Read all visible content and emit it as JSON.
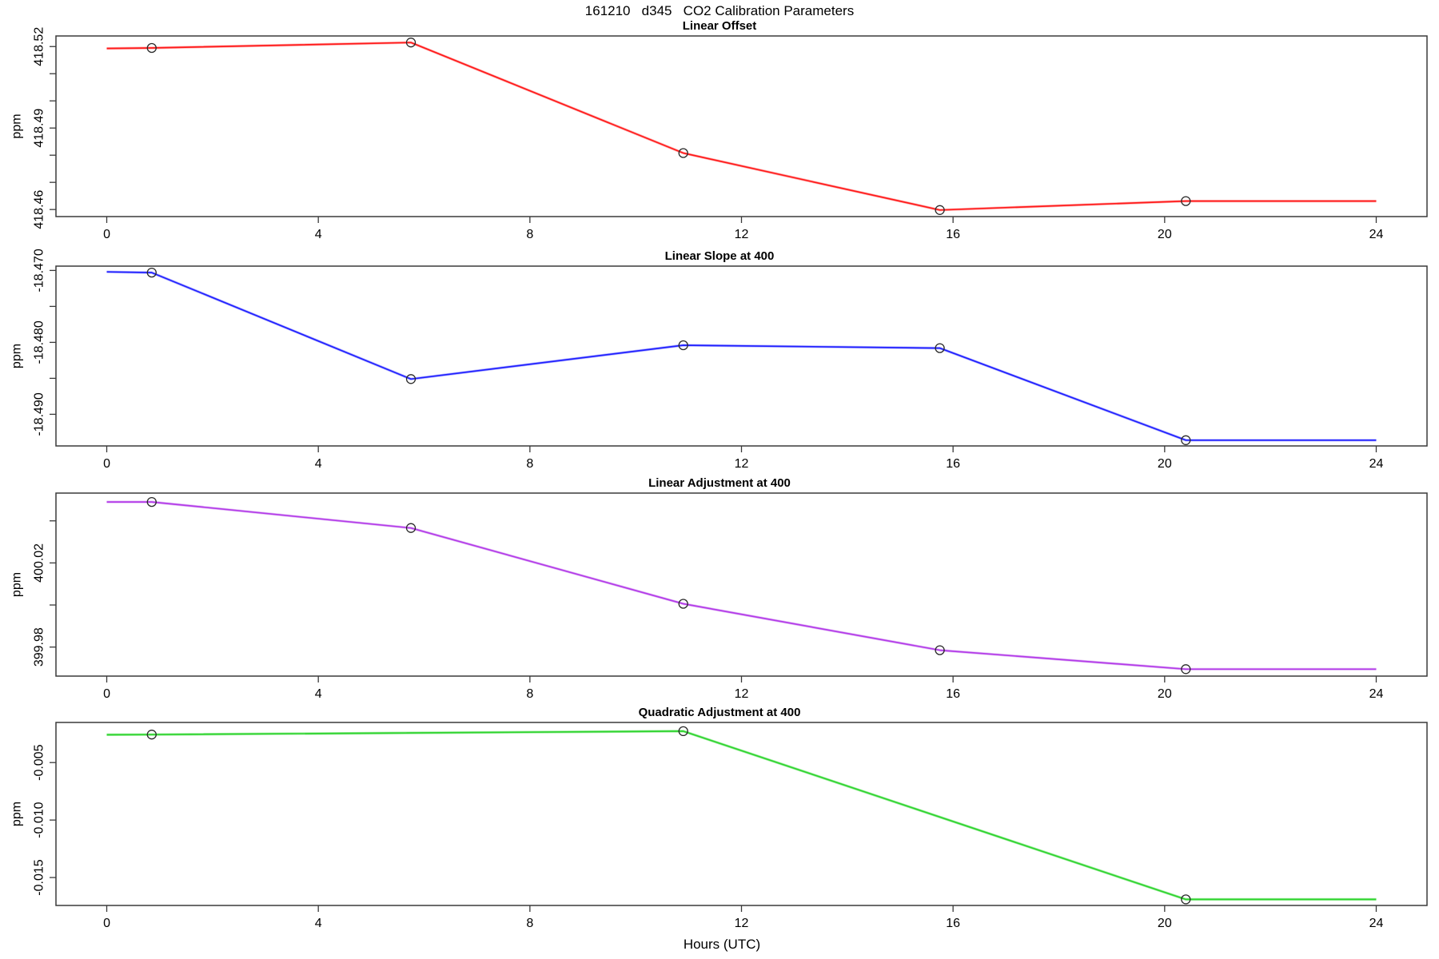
{
  "chart_data": {
    "type": "line",
    "title": "161210   d345   CO2 Calibration Parameters",
    "xlabel": "Hours (UTC)",
    "ylabel": "ppm",
    "x_ticks": [
      0,
      4,
      8,
      12,
      16,
      20,
      24
    ],
    "xlim": [
      -0.96,
      24.96
    ],
    "grid": false,
    "legend": "none",
    "marker": "open-circle",
    "axis_color": "#3a3a3a",
    "panels": [
      {
        "title": "Linear Offset",
        "color": "#ff1a1a",
        "light_color": "#ffb0b0",
        "ylim": [
          418.4574,
          418.5239
        ],
        "yticks": [
          {
            "v": 418.46,
            "label": "418.46"
          },
          {
            "v": 418.47,
            "label": ""
          },
          {
            "v": 418.48,
            "label": ""
          },
          {
            "v": 418.49,
            "label": "418.49"
          },
          {
            "v": 418.5,
            "label": ""
          },
          {
            "v": 418.51,
            "label": ""
          },
          {
            "v": 418.52,
            "label": "418.52"
          }
        ],
        "points": {
          "x": [
            0.85,
            5.75,
            10.9,
            15.75,
            20.4
          ],
          "y": [
            418.5195,
            418.5215,
            418.4808,
            418.4598,
            418.4631
          ]
        },
        "line": {
          "x": [
            0,
            0.85,
            5.75,
            10.9,
            15.75,
            20.4,
            24
          ],
          "y": [
            418.5193,
            418.5195,
            418.5215,
            418.4808,
            418.4598,
            418.4631,
            418.4631
          ]
        }
      },
      {
        "title": "Linear Slope at 400",
        "color": "#2020ff",
        "light_color": "#b3b3ff",
        "ylim": [
          -18.4944,
          -18.4694
        ],
        "yticks": [
          {
            "v": -18.49,
            "label": "-18.490"
          },
          {
            "v": -18.485,
            "label": ""
          },
          {
            "v": -18.48,
            "label": "-18.480"
          },
          {
            "v": -18.475,
            "label": ""
          },
          {
            "v": -18.47,
            "label": "-18.470"
          }
        ],
        "points": {
          "x": [
            0.85,
            5.75,
            10.9,
            15.75,
            20.4
          ],
          "y": [
            -18.4703,
            -18.4851,
            -18.4804,
            -18.4808,
            -18.4936
          ]
        },
        "line": {
          "x": [
            0,
            0.85,
            5.75,
            10.9,
            15.75,
            20.4,
            24
          ],
          "y": [
            -18.4702,
            -18.4703,
            -18.4851,
            -18.4804,
            -18.4808,
            -18.4936,
            -18.4936
          ]
        }
      },
      {
        "title": "Linear Adjustment at 400",
        "color": "#b33be8",
        "light_color": "#e3bcf6",
        "ylim": [
          399.9662,
          400.0532
        ],
        "yticks": [
          {
            "v": 399.98,
            "label": "399.98"
          },
          {
            "v": 400.0,
            "label": ""
          },
          {
            "v": 400.02,
            "label": "400.02"
          },
          {
            "v": 400.04,
            "label": ""
          }
        ],
        "points": {
          "x": [
            0.85,
            5.75,
            10.9,
            15.75,
            20.4
          ],
          "y": [
            400.049,
            400.0366,
            400.0006,
            399.9785,
            399.9695
          ]
        },
        "line": {
          "x": [
            0,
            0.85,
            5.75,
            10.9,
            15.75,
            20.4,
            24
          ],
          "y": [
            400.049,
            400.049,
            400.0366,
            400.0006,
            399.9785,
            399.9695,
            399.9695
          ]
        }
      },
      {
        "title": "Quadratic Adjustment at 400",
        "color": "#2fd32f",
        "light_color": "#a0eea0",
        "ylim": [
          -0.01743,
          -0.00151
        ],
        "yticks": [
          {
            "v": -0.015,
            "label": "-0.015"
          },
          {
            "v": -0.01,
            "label": "-0.010"
          },
          {
            "v": -0.005,
            "label": "-0.005"
          }
        ],
        "points": {
          "x": [
            0.85,
            10.9,
            20.4
          ],
          "y": [
            -0.00257,
            -0.00227,
            -0.0169
          ]
        },
        "line": {
          "x": [
            0,
            0.85,
            10.9,
            20.4,
            24
          ],
          "y": [
            -0.00258,
            -0.00257,
            -0.00227,
            -0.0169,
            -0.0169
          ]
        }
      }
    ]
  }
}
